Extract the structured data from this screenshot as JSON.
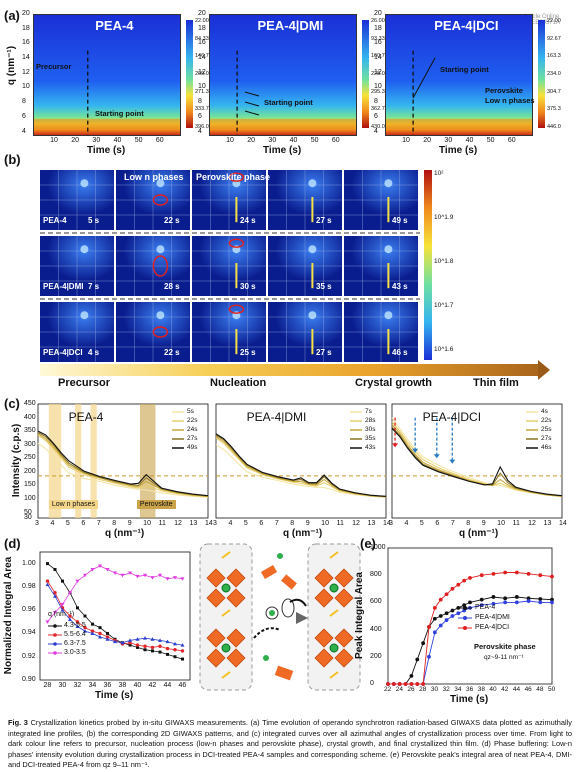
{
  "watermark": {
    "line1": "Article Online",
    "line2": "D3EE00571A"
  },
  "panel_a": {
    "letter": "(a)",
    "ylabel": "q (nm⁻¹)",
    "xlabel": "Time (s)",
    "heatmaps": [
      {
        "title": "PEA-4",
        "cbar": [
          "22.00",
          "84.33",
          "146.7",
          "209.0",
          "271.3",
          "333.7",
          "396.0"
        ],
        "annotations": [
          "Precursor",
          "Starting point"
        ]
      },
      {
        "title": "PEA-4|DMI",
        "cbar": [
          "26.00",
          "93.33",
          "160.7",
          "228.0",
          "295.3",
          "362.7",
          "430.0"
        ],
        "annotations": [
          "Starting point"
        ]
      },
      {
        "title": "PEA-4|DCI",
        "cbar": [
          "22.00",
          "92.67",
          "163.3",
          "234.0",
          "304.7",
          "375.3",
          "446.0"
        ],
        "annotations": [
          "Starting point",
          "Perovskite",
          "Low n phases"
        ]
      }
    ],
    "yticks": [
      "20",
      "18",
      "16",
      "14",
      "12",
      "10",
      "8",
      "6",
      "4"
    ],
    "xticks": [
      "10",
      "20",
      "30",
      "40",
      "50",
      "60"
    ]
  },
  "panel_b": {
    "letter": "(b)",
    "columns": [
      "Low n phases",
      "Perovskite phase"
    ],
    "rows": [
      {
        "sample": "PEA-4",
        "times": [
          "5 s",
          "22 s",
          "24 s",
          "27 s",
          "49 s"
        ]
      },
      {
        "sample": "PEA-4|DMI",
        "times": [
          "7 s",
          "28 s",
          "30 s",
          "35 s",
          "43 s"
        ]
      },
      {
        "sample": "PEA-4|DCI",
        "times": [
          "4 s",
          "22 s",
          "25 s",
          "27 s",
          "46 s"
        ]
      }
    ],
    "cbar": [
      "10²",
      "10^1.9",
      "10^1.8",
      "10^1.7",
      "10^1.6"
    ]
  },
  "stages": [
    "Precursor",
    "Nucleation",
    "Crystal growth",
    "Thin film"
  ],
  "chart_data": [
    {
      "type": "line",
      "panel": "(c)",
      "title": "PEA-4",
      "xlabel": "q (nm⁻¹)",
      "ylabel": "Intensity (c.p.s)",
      "xlim": [
        3,
        14
      ],
      "ylim": [
        30,
        450
      ],
      "xticks": [
        "3",
        "4",
        "5",
        "6",
        "7",
        "8",
        "9",
        "10",
        "11",
        "12",
        "13",
        "14"
      ],
      "yticks": [
        "30",
        "50",
        "100",
        "150",
        "200",
        "250",
        "300",
        "350",
        "400",
        "450"
      ],
      "legend": [
        "5s",
        "22s",
        "24s",
        "27s",
        "49s"
      ],
      "series_colors": [
        "#f3e6a6",
        "#e6cf6d",
        "#c9a83a",
        "#8a7424",
        "#111111"
      ],
      "x": [
        3.0,
        3.5,
        4.0,
        4.5,
        5.0,
        6.0,
        7.0,
        8.0,
        9.0,
        9.5,
        10.0,
        10.5,
        11.0,
        12.0,
        13.0,
        14.0
      ],
      "series": [
        {
          "name": "5s",
          "values": [
            305,
            285,
            255,
            225,
            195,
            175,
            165,
            150,
            140,
            135,
            133,
            128,
            123,
            115,
            110,
            106
          ]
        },
        {
          "name": "22s",
          "values": [
            335,
            315,
            285,
            250,
            218,
            190,
            172,
            158,
            145,
            140,
            148,
            140,
            130,
            120,
            113,
            108
          ]
        },
        {
          "name": "24s",
          "values": [
            340,
            322,
            292,
            258,
            225,
            195,
            178,
            162,
            150,
            145,
            165,
            150,
            135,
            123,
            115,
            110
          ]
        },
        {
          "name": "27s",
          "values": [
            345,
            330,
            300,
            264,
            232,
            198,
            180,
            165,
            153,
            150,
            178,
            158,
            138,
            125,
            117,
            111
          ]
        },
        {
          "name": "49s",
          "values": [
            350,
            336,
            305,
            270,
            240,
            202,
            183,
            168,
            155,
            158,
            190,
            165,
            140,
            127,
            118,
            112
          ]
        }
      ],
      "shaded_labels": [
        "Low n phases",
        "Perovskite"
      ],
      "dashed_level": 185
    },
    {
      "type": "line",
      "panel": "(c)",
      "title": "PEA-4|DMI",
      "xlabel": "q (nm⁻¹)",
      "xlim": [
        3,
        14
      ],
      "ylim": [
        30,
        450
      ],
      "xticks": [
        "3",
        "4",
        "5",
        "6",
        "7",
        "8",
        "9",
        "10",
        "11",
        "12",
        "13",
        "14"
      ],
      "legend": [
        "7s",
        "28s",
        "30s",
        "35s",
        "43s"
      ],
      "series_colors": [
        "#f3e6a6",
        "#e6cf6d",
        "#c9a83a",
        "#8a7424",
        "#111111"
      ],
      "x": [
        3.0,
        3.5,
        4.0,
        4.5,
        5.0,
        6.0,
        7.0,
        8.0,
        8.5,
        9.0,
        9.5,
        10.0,
        10.5,
        11.0,
        12.0,
        13.0,
        14.0
      ],
      "series": [
        {
          "name": "7s",
          "values": [
            300,
            282,
            255,
            228,
            200,
            180,
            168,
            155,
            150,
            146,
            143,
            142,
            135,
            125,
            116,
            110,
            106
          ]
        },
        {
          "name": "28s",
          "values": [
            325,
            305,
            275,
            245,
            215,
            190,
            174,
            162,
            158,
            152,
            148,
            160,
            145,
            130,
            118,
            111,
            107
          ]
        },
        {
          "name": "30s",
          "values": [
            330,
            312,
            282,
            250,
            220,
            193,
            177,
            165,
            165,
            155,
            152,
            172,
            150,
            132,
            120,
            112,
            108
          ]
        },
        {
          "name": "35s",
          "values": [
            335,
            318,
            288,
            255,
            225,
            196,
            180,
            168,
            172,
            158,
            156,
            182,
            155,
            135,
            122,
            113,
            109
          ]
        },
        {
          "name": "43s",
          "values": [
            340,
            322,
            292,
            258,
            228,
            198,
            182,
            170,
            178,
            160,
            160,
            188,
            158,
            137,
            123,
            114,
            110
          ]
        }
      ],
      "dashed_level": 185
    },
    {
      "type": "line",
      "panel": "(c)",
      "title": "PEA-4|DCI",
      "xlabel": "q (nm⁻¹)",
      "xlim": [
        3,
        14
      ],
      "ylim": [
        30,
        450
      ],
      "xticks": [
        "3",
        "4",
        "5",
        "6",
        "7",
        "8",
        "9",
        "10",
        "11",
        "12",
        "13",
        "14"
      ],
      "legend": [
        "4s",
        "22s",
        "25s",
        "27s",
        "46s"
      ],
      "series_colors": [
        "#f3e6a6",
        "#e6cf6d",
        "#c9a83a",
        "#8a7424",
        "#111111"
      ],
      "x": [
        3.0,
        3.5,
        4.0,
        4.5,
        5.0,
        6.0,
        7.0,
        8.0,
        9.0,
        9.5,
        10.0,
        10.5,
        11.0,
        12.0,
        13.0,
        14.0
      ],
      "series": [
        {
          "name": "4s",
          "values": [
            400,
            360,
            320,
            285,
            255,
            225,
            200,
            178,
            160,
            152,
            150,
            142,
            133,
            122,
            114,
            109
          ]
        },
        {
          "name": "22s",
          "values": [
            385,
            350,
            310,
            275,
            245,
            215,
            193,
            172,
            156,
            150,
            158,
            146,
            135,
            124,
            115,
            110
          ]
        },
        {
          "name": "25s",
          "values": [
            375,
            342,
            300,
            265,
            235,
            208,
            188,
            168,
            154,
            150,
            172,
            152,
            138,
            125,
            116,
            110
          ]
        },
        {
          "name": "27s",
          "values": [
            365,
            335,
            292,
            258,
            228,
            203,
            184,
            166,
            152,
            152,
            195,
            160,
            141,
            127,
            117,
            111
          ]
        },
        {
          "name": "46s",
          "values": [
            360,
            330,
            288,
            252,
            224,
            200,
            182,
            165,
            152,
            156,
            218,
            168,
            144,
            128,
            118,
            112
          ]
        }
      ],
      "dashed_level": 185
    },
    {
      "type": "scatter",
      "panel": "(d)",
      "xlabel": "Time (s)",
      "ylabel": "Normalized Integral Area",
      "xlim": [
        27,
        47
      ],
      "ylim": [
        0.9,
        1.01
      ],
      "xticks": [
        "28",
        "30",
        "32",
        "34",
        "36",
        "38",
        "40",
        "42",
        "44",
        "46"
      ],
      "yticks": [
        "1.00",
        "0.98",
        "0.96",
        "0.94",
        "0.92",
        "0.90"
      ],
      "legend_title": "q (nm⁻¹)",
      "series": [
        {
          "name": "4.3-5.5",
          "color": "#111111",
          "x": [
            28,
            29,
            30,
            31,
            32,
            33,
            34,
            35,
            36,
            37,
            38,
            39,
            40,
            41,
            42,
            43,
            44,
            45,
            46
          ],
          "values": [
            1.0,
            0.995,
            0.985,
            0.975,
            0.962,
            0.955,
            0.948,
            0.945,
            0.94,
            0.935,
            0.932,
            0.93,
            0.928,
            0.926,
            0.925,
            0.924,
            0.922,
            0.92,
            0.918
          ]
        },
        {
          "name": "5.5-6.4",
          "color": "#e0242a",
          "x": [
            28,
            29,
            30,
            31,
            32,
            33,
            34,
            35,
            36,
            37,
            38,
            39,
            40,
            41,
            42,
            43,
            44,
            45,
            46
          ],
          "values": [
            0.985,
            0.975,
            0.962,
            0.955,
            0.95,
            0.945,
            0.942,
            0.94,
            0.937,
            0.934,
            0.931,
            0.932,
            0.93,
            0.929,
            0.928,
            0.929,
            0.927,
            0.926,
            0.925
          ]
        },
        {
          "name": "6.3-7.5",
          "color": "#2c3fd0",
          "x": [
            28,
            29,
            30,
            31,
            32,
            33,
            34,
            35,
            36,
            37,
            38,
            39,
            40,
            41,
            42,
            43,
            44,
            45,
            46
          ],
          "values": [
            0.982,
            0.972,
            0.96,
            0.952,
            0.946,
            0.942,
            0.94,
            0.937,
            0.935,
            0.933,
            0.932,
            0.934,
            0.935,
            0.936,
            0.935,
            0.934,
            0.933,
            0.931,
            0.93
          ]
        },
        {
          "name": "3.0-3.5",
          "color": "#e03ae0",
          "x": [
            28,
            29,
            30,
            31,
            32,
            33,
            34,
            35,
            36,
            37,
            38,
            39,
            40,
            41,
            42,
            43,
            44,
            45,
            46
          ],
          "values": [
            0.95,
            0.958,
            0.965,
            0.975,
            0.985,
            0.99,
            0.995,
            0.998,
            0.995,
            0.992,
            0.99,
            0.992,
            0.989,
            0.99,
            0.988,
            0.99,
            0.987,
            0.988,
            0.987
          ]
        }
      ]
    },
    {
      "type": "line",
      "panel": "(e)",
      "xlabel": "Time (s)",
      "ylabel": "Peak Integral Area",
      "xlim": [
        22,
        50
      ],
      "ylim": [
        0,
        1000
      ],
      "xticks": [
        "22",
        "24",
        "26",
        "28",
        "30",
        "32",
        "34",
        "36",
        "38",
        "40",
        "42",
        "44",
        "46",
        "48",
        "50"
      ],
      "yticks": [
        "0",
        "200",
        "400",
        "600",
        "800",
        "1000"
      ],
      "annotation": [
        "Perovskite phase",
        "qz~9-11 nm⁻¹"
      ],
      "series": [
        {
          "name": "PEA-4",
          "color": "#111111",
          "x": [
            22,
            23,
            24,
            25,
            26,
            27,
            28,
            29,
            30,
            31,
            32,
            33,
            34,
            35,
            36,
            38,
            40,
            42,
            44,
            46,
            48,
            50
          ],
          "values": [
            0,
            0,
            0,
            0,
            60,
            180,
            300,
            420,
            480,
            500,
            520,
            540,
            560,
            580,
            600,
            620,
            640,
            630,
            640,
            630,
            625,
            620
          ]
        },
        {
          "name": "PEA-4|DMI",
          "color": "#3040e0",
          "x": [
            22,
            23,
            24,
            25,
            26,
            27,
            28,
            29,
            30,
            31,
            32,
            33,
            34,
            35,
            36,
            38,
            40,
            42,
            44,
            46,
            48,
            50
          ],
          "values": [
            0,
            0,
            0,
            0,
            0,
            0,
            0,
            200,
            380,
            430,
            470,
            500,
            520,
            540,
            560,
            580,
            590,
            600,
            600,
            610,
            600,
            600
          ]
        },
        {
          "name": "PEA-4|DCI",
          "color": "#e02020",
          "x": [
            22,
            23,
            24,
            25,
            26,
            27,
            28,
            29,
            30,
            31,
            32,
            33,
            34,
            35,
            36,
            38,
            40,
            42,
            44,
            46,
            48,
            50
          ],
          "values": [
            0,
            0,
            0,
            0,
            0,
            0,
            0,
            420,
            560,
            620,
            660,
            700,
            730,
            760,
            780,
            800,
            810,
            820,
            820,
            810,
            800,
            790
          ]
        }
      ]
    }
  ],
  "caption": {
    "label": "Fig. 3",
    "text": "Crystallization kinetics probed by in-situ GIWAXS measurements. (a) Time evolution of operando synchrotron radiation-based GIWAXS data plotted as azimuthally integrated line profiles, (b) the corresponding 2D GIWAXS patterns, and (c) integrated curves over all azimuthal angles of crystallization process over time. From light to dark colour line refers to precursor, nucleation process (low-n phases and perovskite phase), crystal growth, and final crystallized thin film. (d) Phase buffering: Low-n phases' intensity evolution during crystallization process in DCI-treated PEA-4 samples and corresponding scheme. (e) Perovskite peak's integral area of neat PEA-4, DMI- and DCI-treated PEA-4 from qz 9–11 nm⁻¹."
  }
}
